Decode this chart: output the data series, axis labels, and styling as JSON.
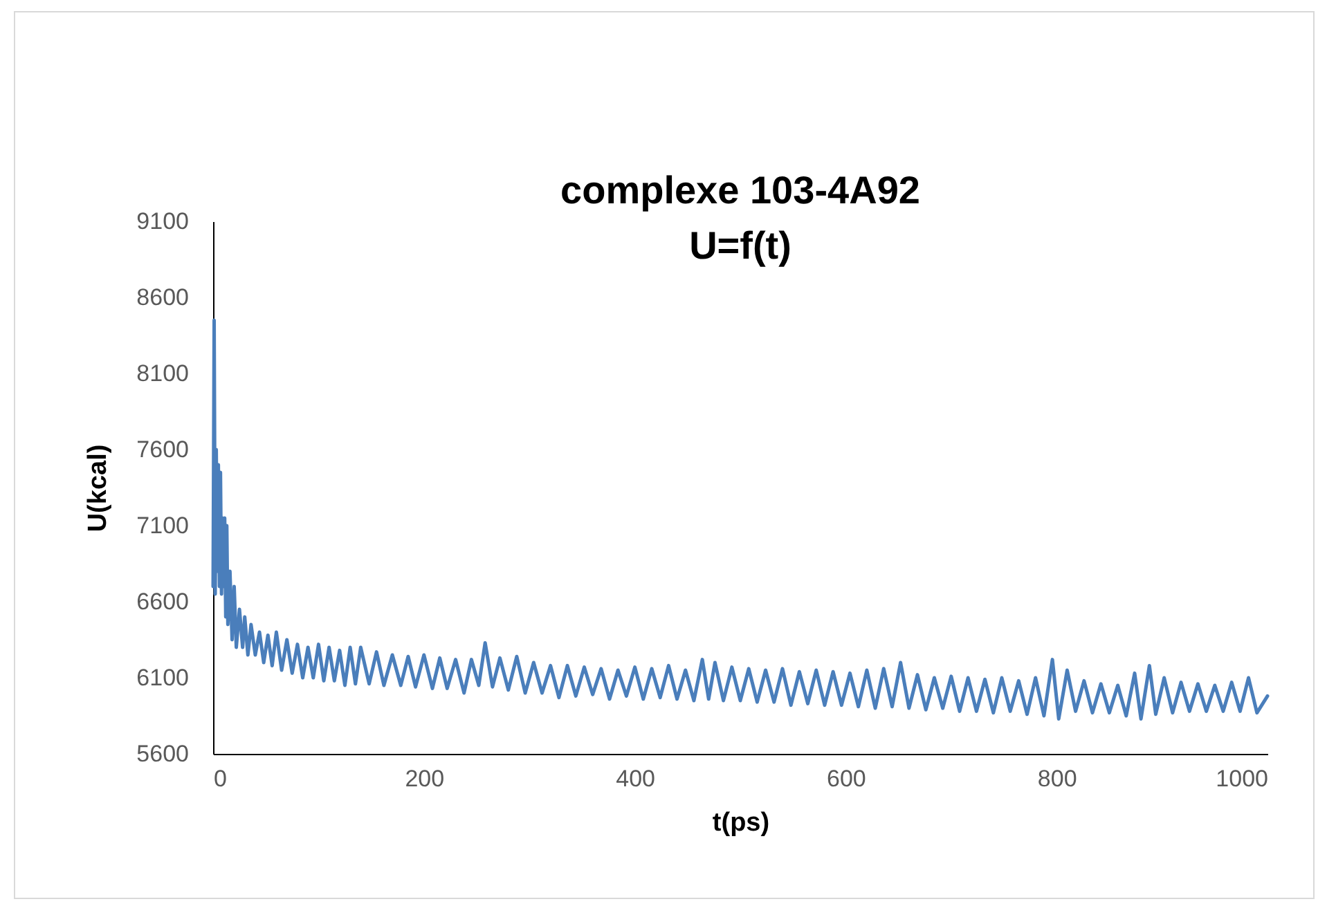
{
  "chart_data": {
    "type": "line",
    "title": "complexe 103-4A92",
    "subtitle": "U=f(t)",
    "xlabel": "t(ps)",
    "ylabel": "U(kcal)",
    "xlim": [
      0,
      1000
    ],
    "xticks": [
      0,
      200,
      400,
      600,
      800,
      1000
    ],
    "ylim": [
      5600,
      9100
    ],
    "yticks": [
      5600,
      6100,
      6600,
      7100,
      7600,
      8100,
      8600,
      9100
    ],
    "grid": false,
    "legend": false,
    "series": [
      {
        "color": "#4a7ebb",
        "x": [
          0,
          1,
          2,
          3,
          4,
          5,
          6,
          7,
          8,
          9,
          10,
          11,
          12,
          13,
          14,
          16,
          18,
          20,
          22,
          25,
          28,
          30,
          33,
          36,
          40,
          44,
          48,
          52,
          56,
          60,
          65,
          70,
          75,
          80,
          85,
          90,
          95,
          100,
          105,
          110,
          115,
          120,
          125,
          130,
          135,
          140,
          148,
          155,
          162,
          170,
          178,
          185,
          192,
          200,
          208,
          215,
          222,
          230,
          238,
          245,
          252,
          258,
          265,
          272,
          280,
          288,
          296,
          304,
          312,
          320,
          328,
          336,
          344,
          352,
          360,
          368,
          376,
          384,
          392,
          400,
          408,
          416,
          424,
          432,
          440,
          448,
          456,
          464,
          470,
          476,
          484,
          492,
          500,
          508,
          516,
          524,
          532,
          540,
          548,
          556,
          564,
          572,
          580,
          588,
          596,
          604,
          612,
          620,
          628,
          636,
          644,
          652,
          660,
          668,
          676,
          684,
          692,
          700,
          708,
          716,
          724,
          732,
          740,
          748,
          756,
          764,
          772,
          780,
          788,
          796,
          802,
          810,
          818,
          826,
          834,
          842,
          850,
          858,
          866,
          874,
          880,
          888,
          894,
          902,
          910,
          918,
          926,
          934,
          942,
          950,
          958,
          966,
          974,
          982,
          990,
          1000
        ],
        "values": [
          6700,
          8450,
          6650,
          7600,
          6800,
          7500,
          6700,
          7450,
          6650,
          7150,
          6700,
          7150,
          6500,
          7100,
          6450,
          6800,
          6350,
          6700,
          6300,
          6550,
          6300,
          6500,
          6250,
          6450,
          6250,
          6400,
          6200,
          6380,
          6180,
          6400,
          6150,
          6350,
          6130,
          6320,
          6100,
          6300,
          6100,
          6320,
          6080,
          6300,
          6080,
          6280,
          6050,
          6300,
          6060,
          6300,
          6060,
          6270,
          6050,
          6250,
          6050,
          6240,
          6040,
          6250,
          6030,
          6230,
          6030,
          6220,
          6000,
          6220,
          6050,
          6330,
          6040,
          6230,
          6020,
          6240,
          6000,
          6200,
          6000,
          6180,
          5970,
          6180,
          5980,
          6170,
          5990,
          6160,
          5960,
          6150,
          5980,
          6170,
          5960,
          6160,
          5970,
          6180,
          5960,
          6150,
          5950,
          6220,
          5960,
          6200,
          5950,
          6170,
          5950,
          6160,
          5940,
          6150,
          5940,
          6160,
          5920,
          6140,
          5930,
          6150,
          5920,
          6140,
          5920,
          6130,
          5910,
          6150,
          5900,
          6160,
          5910,
          6200,
          5900,
          6120,
          5890,
          6100,
          5900,
          6110,
          5880,
          6100,
          5880,
          6090,
          5870,
          6100,
          5880,
          6080,
          5860,
          6100,
          5850,
          6220,
          5830,
          6150,
          5880,
          6080,
          5870,
          6060,
          5870,
          6050,
          5850,
          6130,
          5830,
          6180,
          5860,
          6100,
          5870,
          6070,
          5880,
          6060,
          5880,
          6050,
          5880,
          6070,
          5880,
          6100,
          5870,
          5980
        ]
      }
    ]
  }
}
